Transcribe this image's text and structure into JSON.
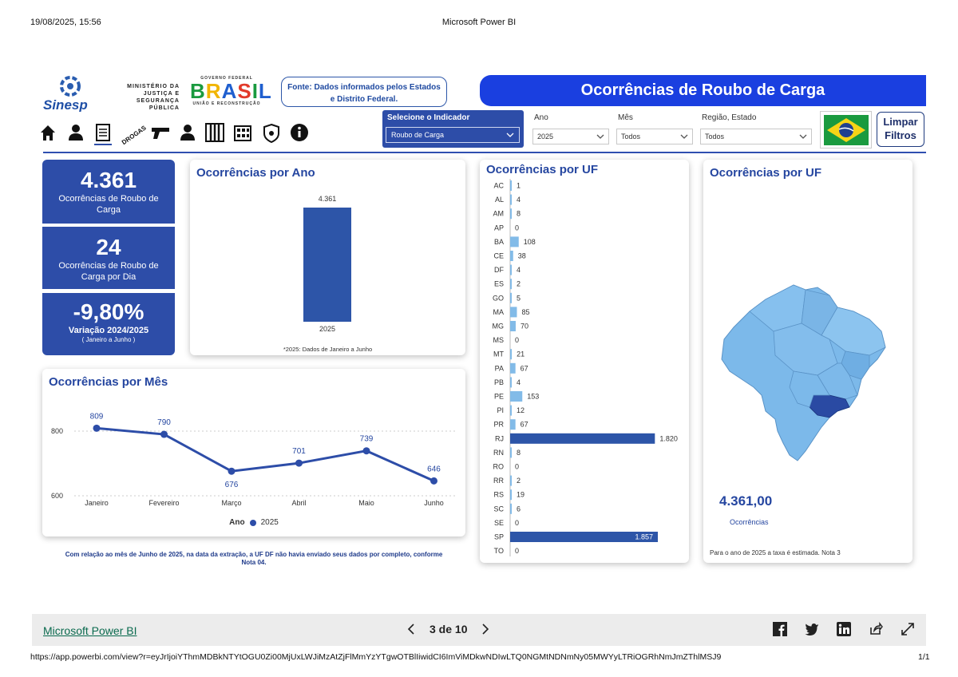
{
  "print": {
    "datetime": "19/08/2025, 15:56",
    "title": "Microsoft Power BI",
    "url": "https://app.powerbi.com/view?r=eyJrIjoiYThmMDBkNTYtOGU0Zi00MjUxLWJiMzAtZjFlMmYzYTgwOTBlIiwidCI6ImViMDkwNDIwLTQ0NGMtNDNmNy05MWYyLTRiOGRhNmJmZThlMSJ9",
    "page_count": "1/1"
  },
  "header": {
    "sinesp_label": "Sinesp",
    "ministry_lines": [
      "MINISTÉRIO DA",
      "JUSTIÇA E",
      "SEGURANÇA PÚBLICA"
    ],
    "gov_top": "GOVERNO FEDERAL",
    "gov_word": "BRASIL",
    "gov_bottom": "UNIÃO E RECONSTRUÇÃO",
    "source_line1": "Fonte: Dados informados pelos Estados",
    "source_line2": "e Distrito Federal.",
    "banner_title": "Ocorrências de Roubo de Carga"
  },
  "nav": {
    "icons": [
      "home-icon",
      "person-icon",
      "document-icon",
      "drogas-icon",
      "gun-icon",
      "user-badge-icon",
      "prison-icon",
      "building-icon",
      "shield-icon",
      "info-icon"
    ],
    "drogas_label": "DROGAS"
  },
  "filters": {
    "indicator_label": "Selecione o Indicador",
    "indicator_value": "Roubo de Carga",
    "ano_label": "Ano",
    "ano_value": "2025",
    "mes_label": "Mês",
    "mes_value": "Todos",
    "regiao_label": "Região, Estado",
    "regiao_value": "Todos",
    "limpar_line1": "Limpar",
    "limpar_line2": "Filtros"
  },
  "kpis": [
    {
      "value": "4.361",
      "label": "Ocorrências de Roubo de Carga"
    },
    {
      "value": "24",
      "label": "Ocorrências de Roubo de Carga por Dia"
    },
    {
      "value": "-9,80%",
      "label": "Variação 2024/2025",
      "sub": "( Janeiro a Junho )"
    }
  ],
  "year_card": {
    "title": "Ocorrências por Ano",
    "note": "*2025: Dados de Janeiro a Junho"
  },
  "month_card": {
    "title": "Ocorrências por Mês",
    "legend_title": "Ano",
    "legend_series": "2025"
  },
  "uf_bar_card": {
    "title": "Ocorrências por UF"
  },
  "uf_map_card": {
    "title": "Ocorrências por UF",
    "total": "4.361,00",
    "total_label": "Ocorrências",
    "note": "Para o ano de 2025 a taxa é estimada. Nota 3"
  },
  "bottom_note": "Com relação ao mês de Junho de 2025, na data da extração, a UF DF não havia enviado seus dados por completo, conforme Nota 04.",
  "footer": {
    "link": "Microsoft Power BI",
    "page_indicator": "3 de 10"
  },
  "colors": {
    "primary": "#2d4da8",
    "banner": "#1a3fe0",
    "light_bar": "#7fb8e8",
    "map_fill": "#7cb9ea",
    "map_highlight": "#2a4aa3"
  },
  "chart_data": [
    {
      "type": "bar",
      "title": "Ocorrências por Ano",
      "categories": [
        "2025"
      ],
      "values": [
        4361
      ],
      "data_labels": [
        "4.361"
      ]
    },
    {
      "type": "line",
      "title": "Ocorrências por Mês",
      "categories": [
        "Janeiro",
        "Fevereiro",
        "Março",
        "Abril",
        "Maio",
        "Junho"
      ],
      "series": [
        {
          "name": "2025",
          "values": [
            809,
            790,
            676,
            701,
            739,
            646
          ]
        }
      ],
      "yticks": [
        "800",
        "600"
      ],
      "ylim": [
        600,
        830
      ],
      "grid": true,
      "legend": "bottom"
    },
    {
      "type": "bar",
      "orientation": "horizontal",
      "title": "Ocorrências por UF",
      "categories": [
        "AC",
        "AL",
        "AM",
        "AP",
        "BA",
        "CE",
        "DF",
        "ES",
        "GO",
        "MA",
        "MG",
        "MS",
        "MT",
        "PA",
        "PB",
        "PE",
        "PI",
        "PR",
        "RJ",
        "RN",
        "RO",
        "RR",
        "RS",
        "SC",
        "SE",
        "SP",
        "TO"
      ],
      "values": [
        1,
        4,
        8,
        0,
        108,
        38,
        4,
        2,
        5,
        85,
        70,
        0,
        21,
        67,
        4,
        153,
        12,
        67,
        1820,
        8,
        0,
        2,
        19,
        6,
        0,
        1857,
        0
      ],
      "labels": [
        "1",
        "4",
        "8",
        "0",
        "108",
        "38",
        "4",
        "2",
        "5",
        "85",
        "70",
        "0",
        "21",
        "67",
        "4",
        "153",
        "12",
        "67",
        "1.820",
        "8",
        "0",
        "2",
        "19",
        "6",
        "0",
        "1.857",
        "0"
      ],
      "xlim": [
        0,
        1857
      ]
    }
  ]
}
